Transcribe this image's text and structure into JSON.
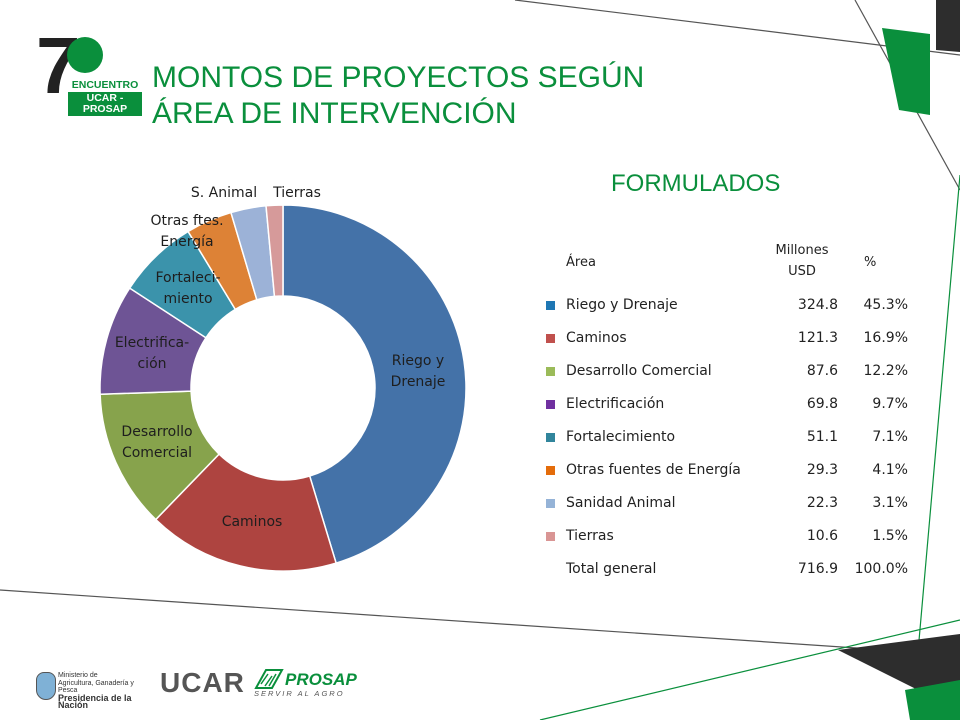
{
  "colors": {
    "accent_green": "#0a8f3c",
    "dark": "#2d2d2d"
  },
  "logo": {
    "number": "7",
    "line1": "ENCUENTRO",
    "line2": "UCAR - PROSAP"
  },
  "title": {
    "line1": "MONTOS DE PROYECTOS SEGÚN",
    "line2": "ÁREA DE INTERVENCIÓN"
  },
  "subtitle": "FORMULADOS",
  "table": {
    "headers": {
      "area": "Área",
      "millones_line1": "Millones",
      "millones_line2": "USD",
      "pct": "%"
    },
    "rows": [
      {
        "area": "Riego y Drenaje",
        "millones": "324.8",
        "pct": "45.3%",
        "color": "#1f77b4"
      },
      {
        "area": "Caminos",
        "millones": "121.3",
        "pct": "16.9%",
        "color": "#c0504d"
      },
      {
        "area": "Desarrollo Comercial",
        "millones": "87.6",
        "pct": "12.2%",
        "color": "#9bbb59"
      },
      {
        "area": "Electrificación",
        "millones": "69.8",
        "pct": "9.7%",
        "color": "#7030a0"
      },
      {
        "area": "Fortalecimiento",
        "millones": "51.1",
        "pct": "7.1%",
        "color": "#31859c"
      },
      {
        "area": "Otras fuentes de Energía",
        "millones": "29.3",
        "pct": "4.1%",
        "color": "#e46c0a"
      },
      {
        "area": "Sanidad Animal",
        "millones": "22.3",
        "pct": "3.1%",
        "color": "#95b3d7"
      },
      {
        "area": "Tierras",
        "millones": "10.6",
        "pct": "1.5%",
        "color": "#d99594"
      }
    ],
    "total": {
      "area": "Total general",
      "millones": "716.9",
      "pct": "100.0%"
    }
  },
  "chart_data": {
    "type": "pie",
    "donut": true,
    "categories": [
      "Riego y Drenaje",
      "Caminos",
      "Desarrollo Comercial",
      "Electrificación",
      "Fortalecimiento",
      "Otras fuentes de Energía",
      "Sanidad Animal",
      "Tierras"
    ],
    "values": [
      324.8,
      121.3,
      87.6,
      69.8,
      51.1,
      29.3,
      22.3,
      10.6
    ],
    "slice_labels": [
      "Riego y\nDrenaje",
      "Caminos",
      "Desarrollo\nComercial",
      "Electrifica-\nción",
      "Fortaleci-\nmiento",
      "Otras ftes.\nEnergía",
      "S. Animal",
      "Tierras"
    ],
    "colors": [
      "#4472a8",
      "#ae4440",
      "#87a34c",
      "#6e5495",
      "#3b93ab",
      "#dd8236",
      "#9cb2d7",
      "#d69a9a"
    ]
  },
  "footer": {
    "ministry_line1": "Ministerio de",
    "ministry_line2": "Agricultura, Ganadería y Pesca",
    "ministry_line3": "Presidencia de la Nación",
    "ucar": "UCAR",
    "prosap_name": "PROSAP",
    "prosap_tag": "SERVIR AL AGRO"
  }
}
